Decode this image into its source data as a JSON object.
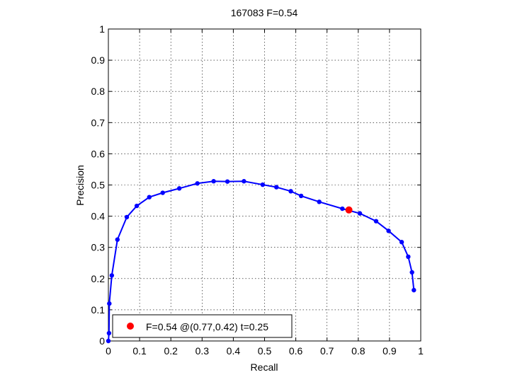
{
  "chart_data": {
    "type": "line",
    "title": "167083 F=0.54",
    "xlabel": "Recall",
    "ylabel": "Precision",
    "xlim": [
      0,
      1
    ],
    "ylim": [
      0,
      1
    ],
    "xticks": [
      "0",
      "0.1",
      "0.2",
      "0.3",
      "0.4",
      "0.5",
      "0.6",
      "0.7",
      "0.8",
      "0.9",
      "1"
    ],
    "yticks": [
      "0",
      "0.1",
      "0.2",
      "0.3",
      "0.4",
      "0.5",
      "0.6",
      "0.7",
      "0.8",
      "0.9",
      "1"
    ],
    "grid": true,
    "legend_position": "bottom-left",
    "series": [
      {
        "color": "#0000ff",
        "x": [
          0.0,
          0.002,
          0.003,
          0.011,
          0.029,
          0.059,
          0.091,
          0.131,
          0.174,
          0.227,
          0.285,
          0.337,
          0.381,
          0.434,
          0.494,
          0.538,
          0.584,
          0.617,
          0.675,
          0.749,
          0.805,
          0.857,
          0.897,
          0.939,
          0.96,
          0.972,
          0.978
        ],
        "y": [
          0.0,
          0.025,
          0.12,
          0.21,
          0.325,
          0.397,
          0.433,
          0.461,
          0.475,
          0.489,
          0.505,
          0.512,
          0.511,
          0.512,
          0.501,
          0.493,
          0.48,
          0.465,
          0.446,
          0.424,
          0.409,
          0.384,
          0.353,
          0.317,
          0.27,
          0.22,
          0.163
        ]
      },
      {
        "color": "#ff0000",
        "x": [
          0.77
        ],
        "y": [
          0.42
        ]
      }
    ],
    "legend": [
      {
        "label": "F=0.54 @(0.77,0.42) t=0.25",
        "color": "#ff0000"
      }
    ]
  }
}
